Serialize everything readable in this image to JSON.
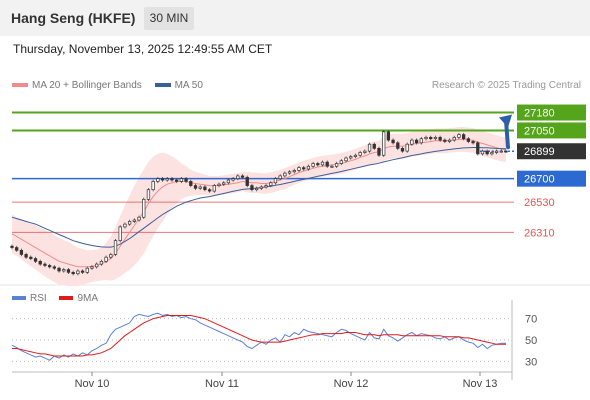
{
  "header": {
    "title": "Hang Seng (HKFE)",
    "interval": "30 MIN"
  },
  "datetime": "Thursday, November 13, 2025 12:49:55 AM CET",
  "legend": {
    "items": [
      {
        "label": "MA 20 + Bollinger Bands",
        "color": "#f28b8b"
      },
      {
        "label": "MA 50",
        "color": "#3a5f9a"
      }
    ]
  },
  "copyright": "Research © 2025 Trading Central",
  "rsi_legend": {
    "items": [
      {
        "label": "RSI",
        "color": "#5b82d6"
      },
      {
        "label": "9MA",
        "color": "#e01b1b"
      }
    ]
  },
  "colors": {
    "resistance": "#55a51c",
    "pivot": "#2c6ad1",
    "support": "#e05555",
    "price_tag": "#333333",
    "bollinger_fill": "#fde2e2",
    "candle_up": "#2e8b2e",
    "candle_down": "#c0392b"
  },
  "chart_data": [
    {
      "type": "line",
      "name": "price",
      "ylim": [
        25950,
        27300
      ],
      "x_ticks": [
        "Nov 10",
        "Nov 11",
        "Nov 12",
        "Nov 13"
      ],
      "levels": [
        {
          "value": 27180,
          "label": "27180",
          "kind": "resistance"
        },
        {
          "value": 27050,
          "label": "27050",
          "kind": "resistance"
        },
        {
          "value": 26899,
          "label": "26899",
          "kind": "last"
        },
        {
          "value": 26700,
          "label": "26700",
          "kind": "pivot"
        },
        {
          "value": 26530,
          "label": "26530",
          "kind": "support"
        },
        {
          "value": 26310,
          "label": "26310",
          "kind": "support"
        }
      ],
      "close": [
        26200,
        26180,
        26150,
        26130,
        26120,
        26100,
        26080,
        26070,
        26060,
        26050,
        26030,
        26040,
        26020,
        26010,
        26030,
        26020,
        26050,
        26060,
        26080,
        26100,
        26130,
        26150,
        26250,
        26350,
        26370,
        26390,
        26400,
        26420,
        26550,
        26620,
        26680,
        26700,
        26690,
        26700,
        26690,
        26680,
        26700,
        26680,
        26650,
        26630,
        26640,
        26620,
        26610,
        26650,
        26660,
        26670,
        26690,
        26700,
        26720,
        26710,
        26650,
        26620,
        26630,
        26640,
        26650,
        26670,
        26700,
        26720,
        26740,
        26750,
        26760,
        26780,
        26770,
        26790,
        26810,
        26800,
        26820,
        26790,
        26790,
        26810,
        26830,
        26850,
        26860,
        26870,
        26890,
        26900,
        26950,
        26920,
        26870,
        27040,
        26980,
        26960,
        26920,
        26900,
        26950,
        26980,
        26960,
        26990,
        27000,
        26990,
        27000,
        26980,
        26970,
        26980,
        27000,
        27020,
        26990,
        26970,
        26960,
        26880,
        26900,
        26880,
        26890,
        26900,
        26900,
        26899
      ],
      "ma20": [
        26300,
        26280,
        26260,
        26240,
        26220,
        26200,
        26180,
        26160,
        26140,
        26120,
        26100,
        26090,
        26080,
        26070,
        26060,
        26060,
        26060,
        26065,
        26070,
        26080,
        26100,
        26120,
        26160,
        26210,
        26260,
        26310,
        26360,
        26410,
        26460,
        26520,
        26570,
        26610,
        26640,
        26660,
        26670,
        26680,
        26680,
        26680,
        26670,
        26665,
        26660,
        26655,
        26650,
        26650,
        26650,
        26655,
        26660,
        26665,
        26670,
        26680,
        26675,
        26670,
        26670,
        26665,
        26665,
        26670,
        26680,
        26690,
        26700,
        26715,
        26730,
        26745,
        26755,
        26765,
        26775,
        26785,
        26790,
        26795,
        26800,
        26805,
        26810,
        26820,
        26830,
        26840,
        26855,
        26865,
        26880,
        26890,
        26895,
        26920,
        26930,
        26935,
        26935,
        26935,
        26940,
        26950,
        26955,
        26960,
        26965,
        26970,
        26975,
        26975,
        26975,
        26978,
        26980,
        26985,
        26985,
        26982,
        26978,
        26965,
        26955,
        26945,
        26935,
        26925,
        26915,
        26910
      ],
      "ma50": [
        26420,
        26410,
        26400,
        26390,
        26380,
        26370,
        26355,
        26340,
        26325,
        26310,
        26295,
        26280,
        26265,
        26250,
        26240,
        26230,
        26222,
        26215,
        26210,
        26205,
        26203,
        26203,
        26210,
        26225,
        26245,
        26265,
        26290,
        26315,
        26340,
        26365,
        26390,
        26415,
        26440,
        26460,
        26480,
        26500,
        26515,
        26530,
        26540,
        26550,
        26560,
        26565,
        26570,
        26578,
        26585,
        26592,
        26600,
        26608,
        26615,
        26622,
        26625,
        26628,
        26632,
        26636,
        26640,
        26645,
        26652,
        26658,
        26665,
        26672,
        26680,
        26688,
        26695,
        26702,
        26710,
        26717,
        26724,
        26731,
        26738,
        26745,
        26752,
        26760,
        26768,
        26776,
        26784,
        26792,
        26800,
        26806,
        26812,
        26822,
        26830,
        26838,
        26845,
        26852,
        26860,
        26868,
        26874,
        26880,
        26887,
        26893,
        26898,
        26903,
        26908,
        26912,
        26916,
        26920,
        26923,
        26925,
        26926,
        26926,
        26925,
        26924,
        26922,
        26920,
        26918,
        26917
      ],
      "band_width": [
        140,
        140,
        145,
        150,
        155,
        160,
        165,
        170,
        170,
        170,
        170,
        165,
        160,
        150,
        140,
        130,
        120,
        115,
        115,
        120,
        135,
        160,
        190,
        220,
        245,
        270,
        290,
        300,
        305,
        300,
        290,
        270,
        250,
        220,
        190,
        160,
        130,
        110,
        95,
        85,
        80,
        75,
        70,
        70,
        70,
        70,
        70,
        70,
        70,
        70,
        75,
        75,
        75,
        75,
        75,
        75,
        75,
        75,
        75,
        75,
        75,
        75,
        75,
        75,
        75,
        75,
        75,
        75,
        75,
        75,
        75,
        75,
        75,
        75,
        75,
        75,
        80,
        80,
        80,
        90,
        90,
        90,
        90,
        90,
        90,
        90,
        90,
        90,
        90,
        90,
        90,
        90,
        90,
        90,
        90,
        90,
        90,
        90,
        90,
        90,
        90,
        90,
        90,
        90,
        90,
        90
      ]
    },
    {
      "type": "line",
      "name": "rsi",
      "ylim": [
        20,
        80
      ],
      "y_ticks": [
        70,
        50,
        30
      ],
      "rsi": [
        45,
        43,
        40,
        38,
        36,
        34,
        35,
        33,
        31,
        35,
        33,
        36,
        34,
        37,
        35,
        38,
        36,
        40,
        42,
        45,
        47,
        55,
        60,
        62,
        64,
        66,
        72,
        74,
        73,
        72,
        74,
        75,
        73,
        74,
        72,
        73,
        71,
        72,
        70,
        69,
        66,
        64,
        62,
        60,
        58,
        56,
        54,
        52,
        50,
        48,
        44,
        42,
        45,
        48,
        46,
        50,
        52,
        48,
        55,
        53,
        57,
        55,
        60,
        58,
        57,
        56,
        55,
        54,
        53,
        57,
        60,
        59,
        56,
        54,
        52,
        50,
        57,
        52,
        51,
        60,
        54,
        52,
        49,
        52,
        55,
        57,
        54,
        56,
        55,
        54,
        52,
        51,
        53,
        50,
        52,
        53,
        50,
        48,
        47,
        43,
        46,
        42,
        45,
        46,
        47,
        47
      ],
      "ma9": [
        42,
        42,
        41,
        40,
        39,
        38,
        37,
        37,
        36,
        35,
        35,
        35,
        35,
        35,
        35,
        35,
        36,
        36,
        37,
        38,
        40,
        42,
        46,
        50,
        54,
        57,
        60,
        63,
        66,
        68,
        70,
        71,
        72,
        73,
        73,
        73,
        73,
        73,
        73,
        72,
        71,
        70,
        68,
        66,
        64,
        62,
        60,
        58,
        56,
        54,
        52,
        50,
        49,
        48,
        48,
        48,
        48,
        48,
        49,
        50,
        51,
        52,
        53,
        54,
        55,
        55,
        56,
        56,
        56,
        56,
        56,
        57,
        57,
        57,
        56,
        55,
        55,
        55,
        54,
        55,
        55,
        55,
        55,
        54,
        54,
        54,
        54,
        54,
        54,
        54,
        54,
        54,
        53,
        53,
        53,
        53,
        52,
        52,
        51,
        50,
        49,
        48,
        47,
        46,
        46,
        46
      ]
    }
  ]
}
